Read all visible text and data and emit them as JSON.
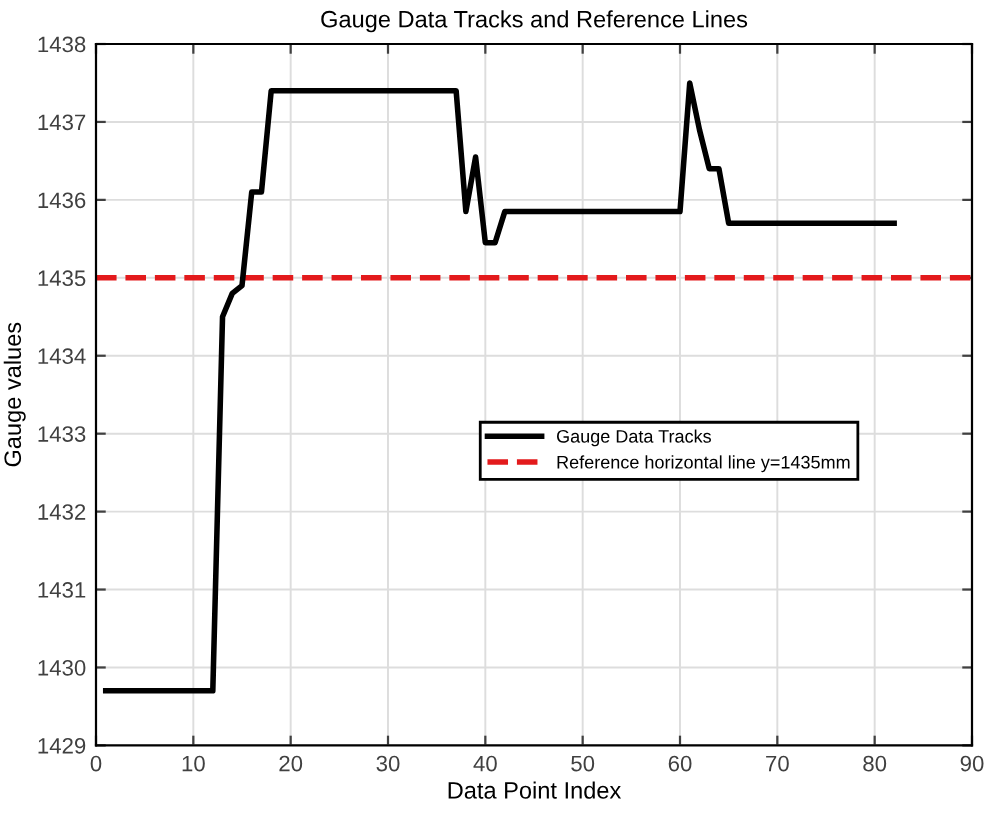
{
  "chart_data": {
    "type": "line",
    "title": "Gauge Data Tracks and Reference Lines",
    "xlabel": "Data Point Index",
    "ylabel": "Gauge values",
    "x": [
      1,
      2,
      3,
      4,
      5,
      6,
      7,
      8,
      9,
      10,
      11,
      12,
      13,
      14,
      15,
      16,
      17,
      18,
      19,
      20,
      21,
      22,
      23,
      24,
      25,
      26,
      27,
      28,
      29,
      30,
      31,
      32,
      33,
      34,
      35,
      36,
      37,
      38,
      39,
      40,
      41,
      42,
      43,
      44,
      45,
      46,
      47,
      48,
      49,
      50,
      51,
      52,
      53,
      54,
      55,
      56,
      57,
      58,
      59,
      60,
      61,
      62,
      63,
      64,
      65,
      66,
      67,
      68,
      69,
      70,
      71,
      72,
      73,
      74,
      75,
      76,
      77,
      78,
      79,
      80,
      81,
      82
    ],
    "series": [
      {
        "name": "Gauge Data Tracks",
        "color": "#000000",
        "values": [
          1429.7,
          1429.7,
          1429.7,
          1429.7,
          1429.7,
          1429.7,
          1429.7,
          1429.7,
          1429.7,
          1429.7,
          1429.7,
          1429.7,
          1434.5,
          1434.8,
          1434.9,
          1436.1,
          1436.1,
          1437.4,
          1437.4,
          1437.4,
          1437.4,
          1437.4,
          1437.4,
          1437.4,
          1437.4,
          1437.4,
          1437.4,
          1437.4,
          1437.4,
          1437.4,
          1437.4,
          1437.4,
          1437.4,
          1437.4,
          1437.4,
          1437.4,
          1437.4,
          1435.85,
          1436.55,
          1435.45,
          1435.45,
          1435.85,
          1435.85,
          1435.85,
          1435.85,
          1435.85,
          1435.85,
          1435.85,
          1435.85,
          1435.85,
          1435.85,
          1435.85,
          1435.85,
          1435.85,
          1435.85,
          1435.85,
          1435.85,
          1435.85,
          1435.85,
          1435.85,
          1437.5,
          1436.9,
          1436.4,
          1436.4,
          1435.7,
          1435.7,
          1435.7,
          1435.7,
          1435.7,
          1435.7,
          1435.7,
          1435.7,
          1435.7,
          1435.7,
          1435.7,
          1435.7,
          1435.7,
          1435.7,
          1435.7,
          1435.7,
          1435.7,
          1435.7
        ]
      }
    ],
    "ref_lines": [
      {
        "axis": "y",
        "value": 1435,
        "label": "Reference horizontal line y=1435mm",
        "color": "#e31a1c",
        "line_style": "dashed"
      }
    ],
    "xlim": [
      0,
      90
    ],
    "xticks": [
      0,
      10,
      20,
      30,
      40,
      50,
      60,
      70,
      80,
      90
    ],
    "ylim": [
      1429,
      1438
    ],
    "yticks": [
      1429,
      1430,
      1431,
      1432,
      1433,
      1434,
      1435,
      1436,
      1437,
      1438
    ],
    "grid": true,
    "legend": "right",
    "marker": "none",
    "line_style": "solid"
  }
}
